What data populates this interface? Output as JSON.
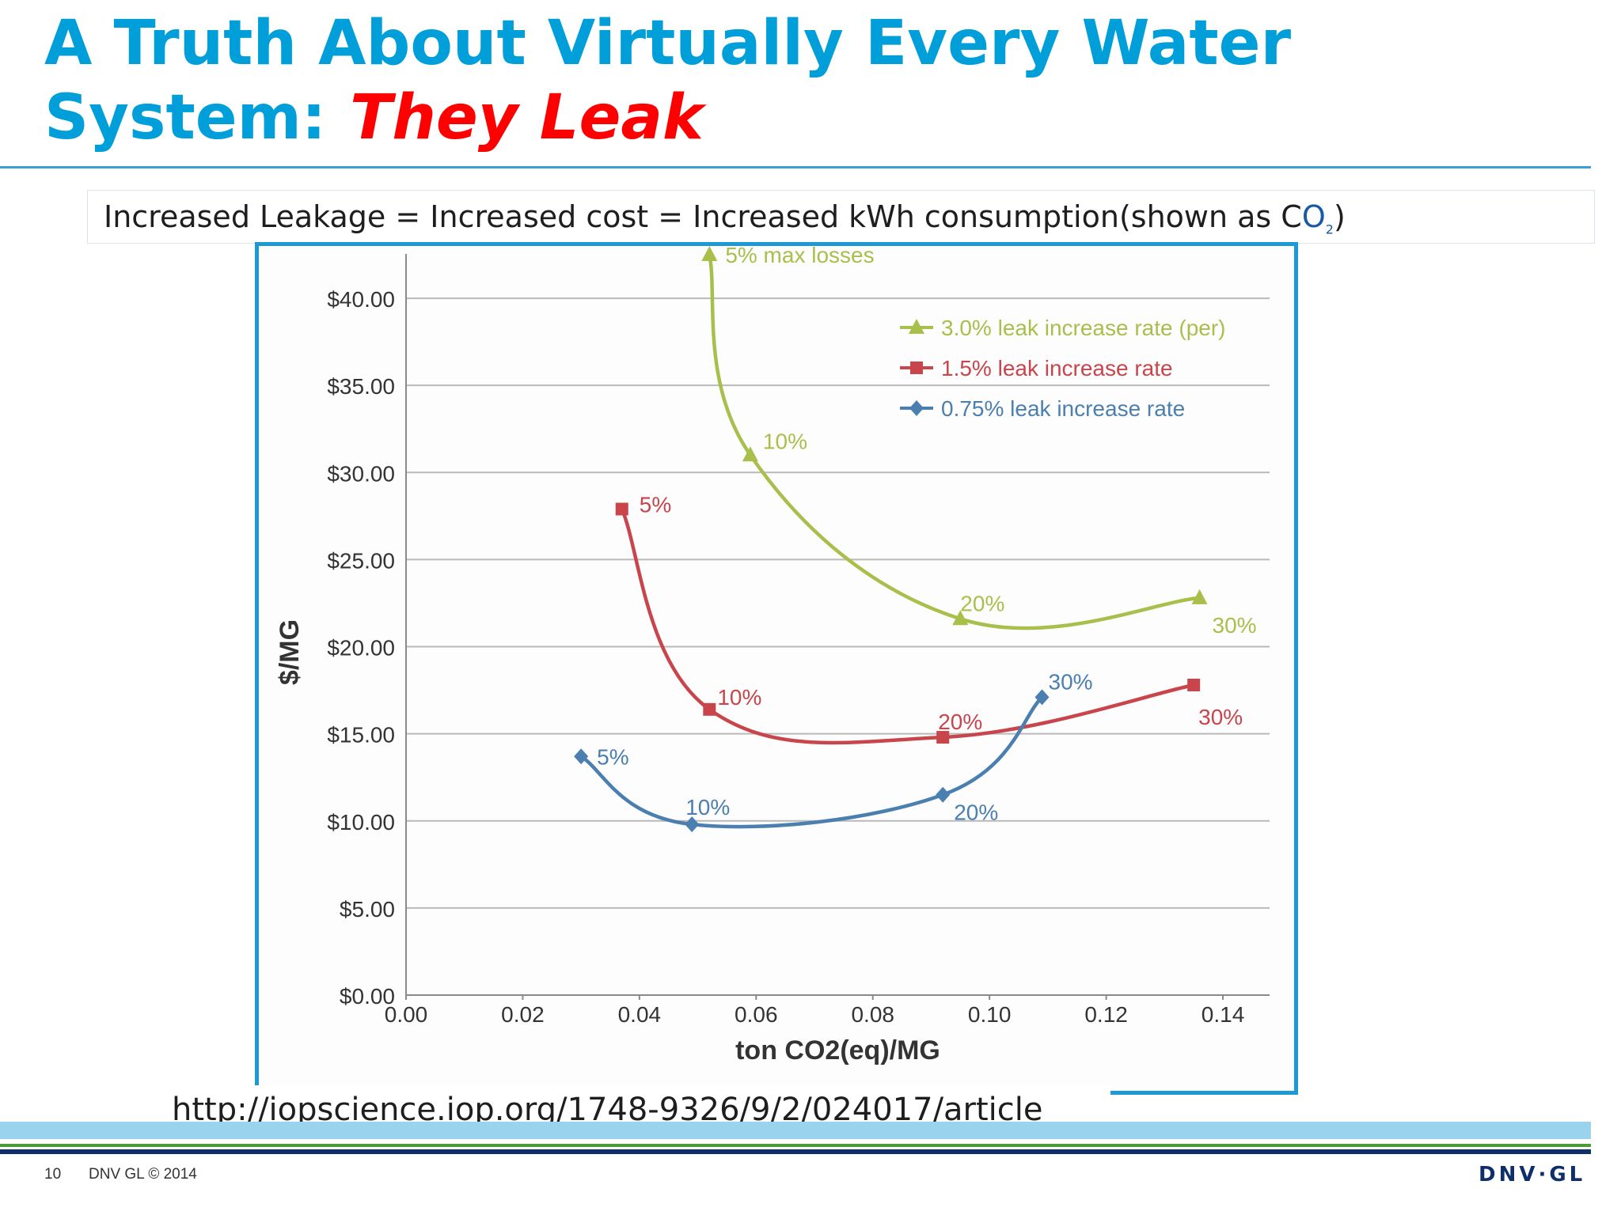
{
  "slide": {
    "title_main": "A Truth About Virtually Every Water System:",
    "title_accent": "They Leak",
    "subtitle_prefix": "Increased Leakage = Increased cost = Increased kWh consumption(shown as C",
    "subtitle_co2": "O",
    "subtitle_sub": "2",
    "subtitle_suffix": ")",
    "source_url": "http://iopscience.iop.org/1748-9326/9/2/024017/article",
    "page_number": "10",
    "copyright": "DNV GL © 2014",
    "logo": "DNV·GL"
  },
  "chart_data": {
    "type": "line",
    "title": "",
    "xlabel": "ton CO2(eq)/MG",
    "ylabel": "$/MG",
    "xlim": [
      0,
      0.148
    ],
    "ylim": [
      0,
      43
    ],
    "x_ticks": [
      "0.00",
      "0.02",
      "0.04",
      "0.06",
      "0.08",
      "0.10",
      "0.12",
      "0.14"
    ],
    "y_ticks": [
      "$0.00",
      "$5.00",
      "$10.00",
      "$15.00",
      "$20.00",
      "$25.00",
      "$30.00",
      "$35.00",
      "$40.00"
    ],
    "grid": "horizontal",
    "legend_position": "top-right",
    "series": [
      {
        "name": "3.0% leak increase rate (per)",
        "color": "#a8bf4c",
        "marker": "triangle",
        "points": [
          {
            "x": 0.052,
            "y": 42.5,
            "label": "5% max losses"
          },
          {
            "x": 0.059,
            "y": 31.0,
            "label": "10%"
          },
          {
            "x": 0.095,
            "y": 21.6,
            "label": "20%"
          },
          {
            "x": 0.136,
            "y": 22.8,
            "label": "30%"
          }
        ]
      },
      {
        "name": "1.5% leak increase rate",
        "color": "#c8454c",
        "marker": "square",
        "points": [
          {
            "x": 0.037,
            "y": 27.9,
            "label": "5%"
          },
          {
            "x": 0.052,
            "y": 16.4,
            "label": "10%"
          },
          {
            "x": 0.092,
            "y": 14.8,
            "label": "20%"
          },
          {
            "x": 0.135,
            "y": 17.8,
            "label": "30%"
          }
        ]
      },
      {
        "name": "0.75% leak increase rate",
        "color": "#4a7fb0",
        "marker": "diamond",
        "points": [
          {
            "x": 0.03,
            "y": 13.7,
            "label": "5%"
          },
          {
            "x": 0.049,
            "y": 9.8,
            "label": "10%"
          },
          {
            "x": 0.092,
            "y": 11.5,
            "label": "20%"
          },
          {
            "x": 0.109,
            "y": 17.1,
            "label": "30%"
          }
        ]
      }
    ]
  }
}
